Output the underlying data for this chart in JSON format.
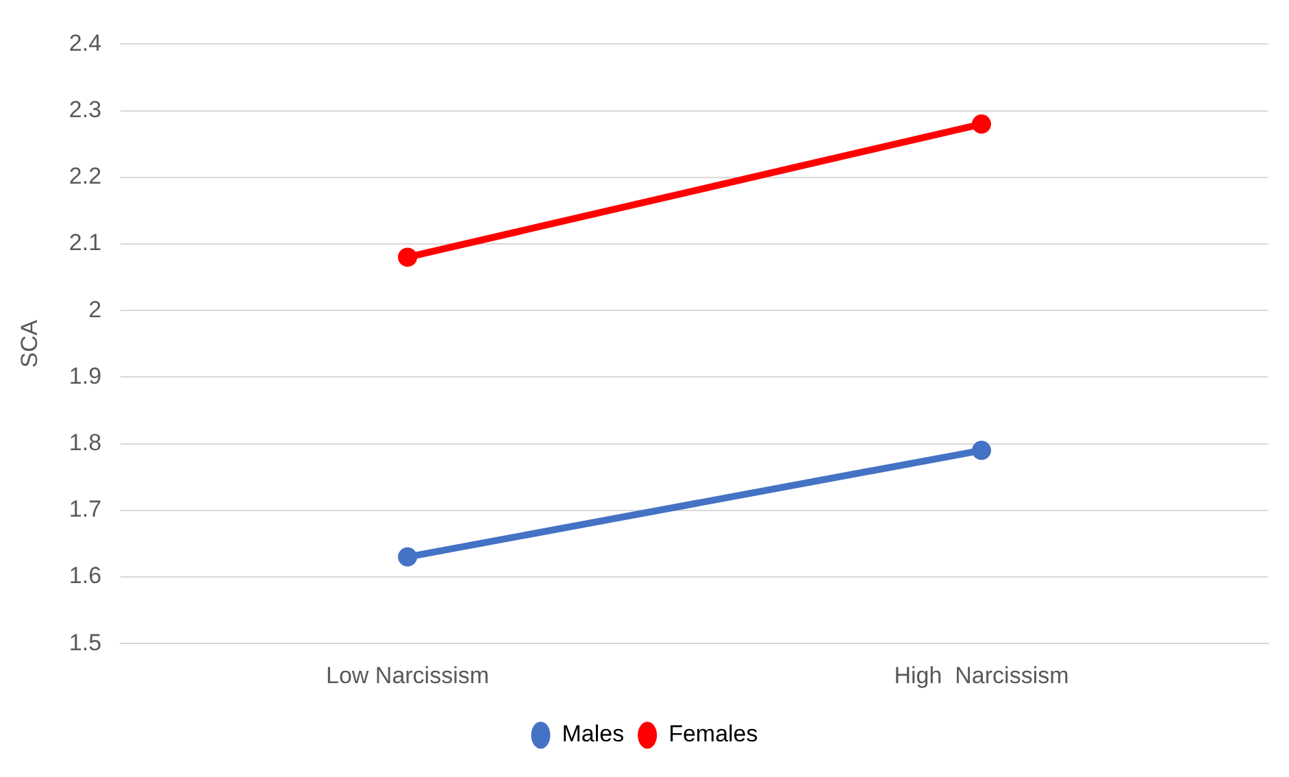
{
  "chart_data": {
    "type": "line",
    "ylabel": "SCA",
    "categories": [
      "Low Narcissism",
      "High  Narcissism"
    ],
    "series": [
      {
        "name": "Males",
        "color": "#4472c4",
        "values": [
          1.63,
          1.79
        ]
      },
      {
        "name": "Females",
        "color": "#ff0000",
        "values": [
          2.08,
          2.28
        ]
      }
    ],
    "ylim": [
      1.5,
      2.4
    ],
    "yticks": [
      1.5,
      1.6,
      1.7,
      1.8,
      1.9,
      2,
      2.1,
      2.2,
      2.3,
      2.4
    ],
    "grid": "y",
    "legend": "bottom",
    "marker": "circle",
    "line_style": "solid"
  }
}
